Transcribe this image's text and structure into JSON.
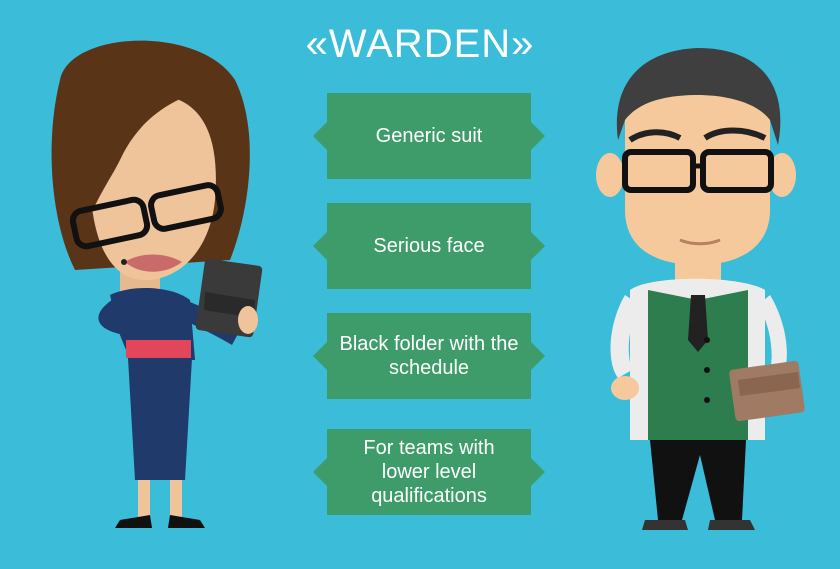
{
  "title": "«WARDEN»",
  "features": [
    {
      "text": "Generic suit"
    },
    {
      "text": "Serious face"
    },
    {
      "text": "Black folder with the schedule"
    },
    {
      "text": "For teams with lower level qualifications"
    }
  ],
  "colors": {
    "background": "#3bbcd9",
    "card": "#3e9c6a",
    "text": "#ffffff"
  },
  "illustrations": {
    "left": "female-warden-character",
    "right": "male-warden-character"
  }
}
